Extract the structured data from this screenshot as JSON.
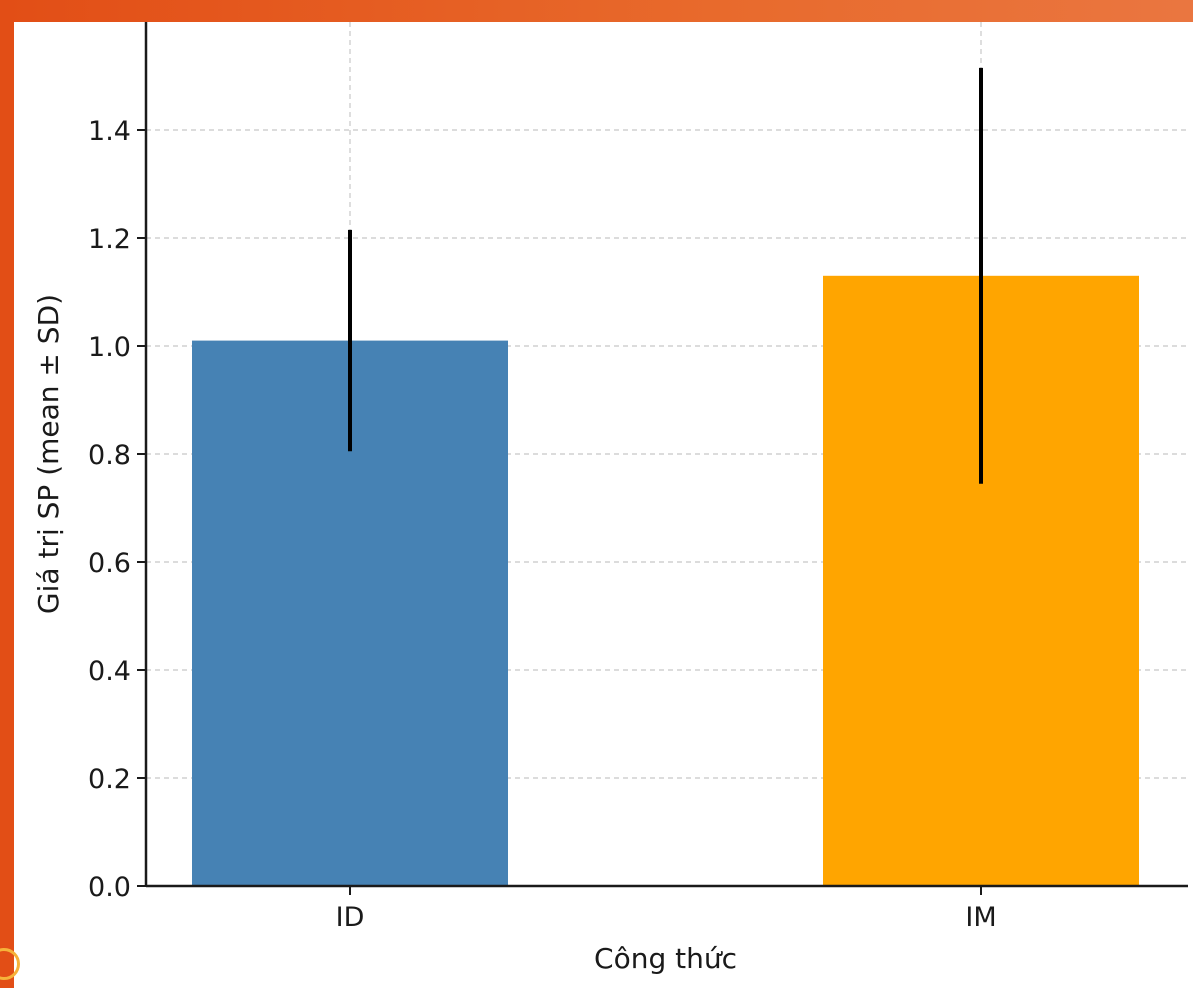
{
  "chart_data": {
    "type": "bar",
    "title": "",
    "xlabel": "Công thức",
    "ylabel": "Giá trị SP (mean ± SD)",
    "categories": [
      "ID",
      "IM"
    ],
    "values": [
      1.01,
      1.13
    ],
    "errors": [
      0.205,
      0.385
    ],
    "colors": [
      "#4682b4",
      "#ffa500"
    ],
    "error_color": "#000000",
    "ylim": [
      0,
      1.6
    ],
    "yticks": [
      "0.0",
      "0.2",
      "0.4",
      "0.6",
      "0.8",
      "1.0",
      "1.2",
      "1.4"
    ],
    "grid": true,
    "legend": "none"
  }
}
